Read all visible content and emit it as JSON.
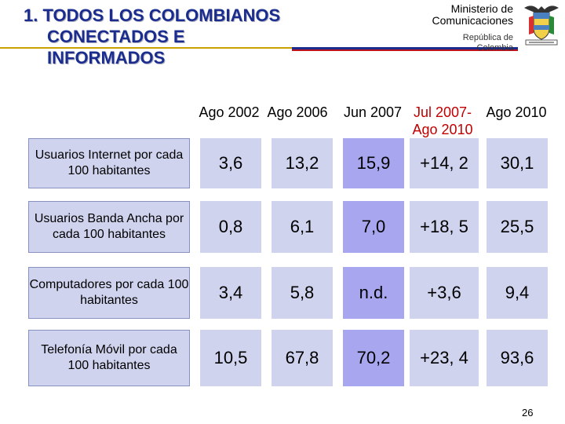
{
  "title": {
    "line1": "1. TODOS LOS COLOMBIANOS",
    "line2": "CONECTADOS E",
    "line3": "INFORMADOS"
  },
  "header_right": {
    "ministry_line1": "Ministerio de",
    "ministry_line2": "Comunicaciones",
    "republic_line1": "República de",
    "republic_line2": "Colombia",
    "crest_icon": "colombia-coat-of-arms-icon"
  },
  "table": {
    "columns": [
      "Ago 2002",
      "Ago 2006",
      "Jun 2007",
      "Jul 2007- Ago 2010",
      "Ago 2010"
    ],
    "rows": [
      {
        "label": "Usuarios Internet por cada 100 habitantes",
        "values": [
          "3,6",
          "13,2",
          "15,9",
          "+14, 2",
          "30,1"
        ]
      },
      {
        "label": "Usuarios Banda Ancha por cada 100 habitantes",
        "values": [
          "0,8",
          "6,1",
          "7,0",
          "+18, 5",
          "25,5"
        ]
      },
      {
        "label": "Computadores por cada 100 habitantes",
        "values": [
          "3,4",
          "5,8",
          "n.d.",
          "+3,6",
          "9,4"
        ]
      },
      {
        "label": "Telefonía Móvil por cada 100 habitantes",
        "values": [
          "10,5",
          "67,8",
          "70,2",
          "+23, 4",
          "93,6"
        ]
      }
    ]
  },
  "page_number": "26",
  "colors": {
    "title": "#1a2d8f",
    "cell_blue": "#cfd3ee",
    "cell_purple": "#a9a6f0",
    "header_red": "#c00000"
  }
}
